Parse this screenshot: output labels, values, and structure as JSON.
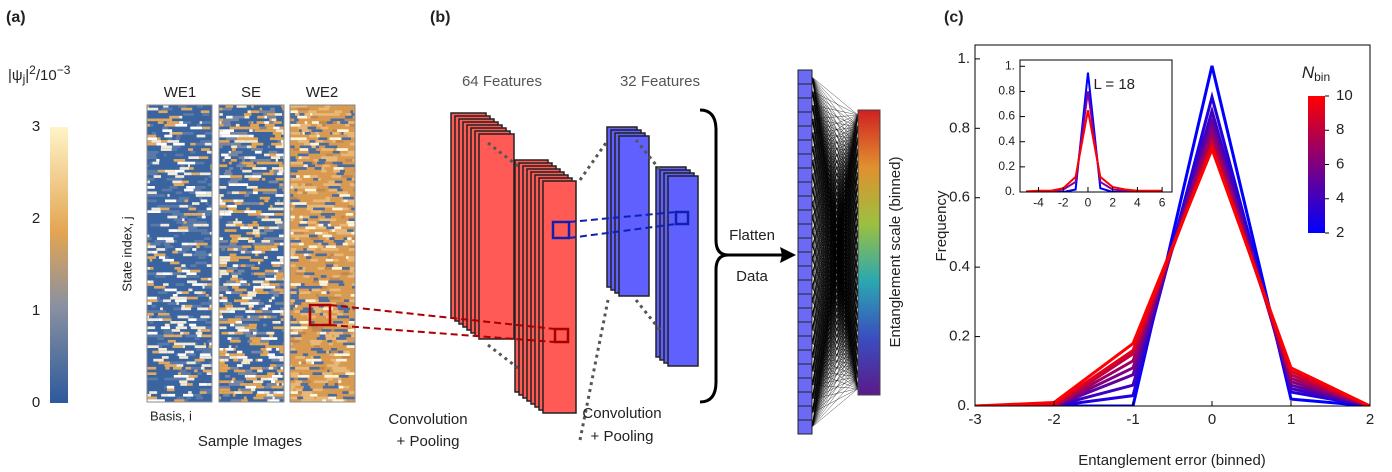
{
  "panel_labels": [
    "(a)",
    "(b)",
    "(c)"
  ],
  "panel_a": {
    "colorbar": {
      "label": {
        "pre": "|ψ",
        "sub": "j",
        "mid": "|",
        "sup": "2",
        "post": "/10",
        "sup2": "−3"
      },
      "lim": [
        0,
        3
      ],
      "ticks": [
        0,
        1,
        2,
        3
      ]
    },
    "columns": [
      "WE1",
      "SE",
      "WE2"
    ],
    "y_label": "State index, j",
    "x_label": "Basis, i",
    "caption": "Sample Images"
  },
  "panel_b": {
    "features": [
      "64 Features",
      "32 Features"
    ],
    "steps": [
      [
        "Convolution",
        "+ Pooling"
      ],
      [
        "Convolution",
        "+ Pooling"
      ]
    ],
    "flatten": "Flatten",
    "data": "Data",
    "output_label": "Entanglement scale (binned)"
  },
  "chart_data": [
    {
      "type": "line",
      "x_label": "Entanglement error (binned)",
      "y_label": "Frequency",
      "x": [
        -3,
        -2,
        -1,
        0,
        1,
        2
      ],
      "xlim": [
        -3,
        2
      ],
      "xticks": [
        -3,
        -2,
        -1,
        0,
        1,
        2
      ],
      "ylim": [
        0,
        1.04
      ],
      "yticks": [
        {
          "value": 0,
          "label": "0."
        },
        0.2,
        0.4,
        0.6,
        0.8,
        {
          "value": 1,
          "label": "1."
        }
      ],
      "colorbar": {
        "title": "N",
        "title_sub": "bin",
        "lim": [
          2,
          10
        ],
        "ticks": [
          2,
          4,
          6,
          8,
          10
        ]
      },
      "series": [
        {
          "color": "#0000ff",
          "values": [
            0,
            0,
            0,
            0.98,
            0.02,
            0
          ]
        },
        {
          "color": "#2000df",
          "values": [
            0,
            0,
            0.03,
            0.89,
            0.04,
            0
          ]
        },
        {
          "color": "#4000bf",
          "values": [
            0,
            0,
            0.06,
            0.85,
            0.05,
            0
          ]
        },
        {
          "color": "#60009f",
          "values": [
            0,
            0,
            0.09,
            0.82,
            0.06,
            0
          ]
        },
        {
          "color": "#80007f",
          "values": [
            0,
            0,
            0.11,
            0.8,
            0.07,
            0
          ]
        },
        {
          "color": "#9f0060",
          "values": [
            0,
            0,
            0.13,
            0.78,
            0.08,
            0
          ]
        },
        {
          "color": "#bf0040",
          "values": [
            0,
            0,
            0.15,
            0.76,
            0.09,
            0
          ]
        },
        {
          "color": "#df0020",
          "values": [
            0,
            0.005,
            0.16,
            0.75,
            0.1,
            0
          ]
        },
        {
          "color": "#ff0000",
          "values": [
            0,
            0.01,
            0.18,
            0.74,
            0.11,
            0
          ]
        }
      ]
    },
    {
      "type": "line",
      "annotation": "L = 18",
      "x": [
        -5,
        -4,
        -3,
        -2,
        -1,
        0,
        1,
        2,
        3,
        4,
        5,
        6
      ],
      "xlim": [
        -5.5,
        6.8
      ],
      "xticks": [
        -4,
        -2,
        0,
        2,
        4,
        6
      ],
      "ylim": [
        0,
        1.05
      ],
      "yticks": [
        {
          "value": 0,
          "label": "0."
        },
        0.2,
        0.4,
        0.6,
        0.8,
        {
          "value": 1,
          "label": "1."
        }
      ],
      "series": [
        {
          "color": "#0000ff",
          "values": [
            0,
            0,
            0,
            0,
            0.02,
            0.95,
            0.03,
            0,
            0,
            0,
            0,
            0
          ]
        },
        {
          "color": "#8000a0",
          "values": [
            0,
            0,
            0.005,
            0.02,
            0.08,
            0.8,
            0.08,
            0.02,
            0.01,
            0,
            0,
            0
          ]
        },
        {
          "color": "#ff0000",
          "values": [
            0.005,
            0.01,
            0.01,
            0.03,
            0.12,
            0.65,
            0.12,
            0.04,
            0.02,
            0.01,
            0.01,
            0.01
          ]
        }
      ]
    }
  ]
}
